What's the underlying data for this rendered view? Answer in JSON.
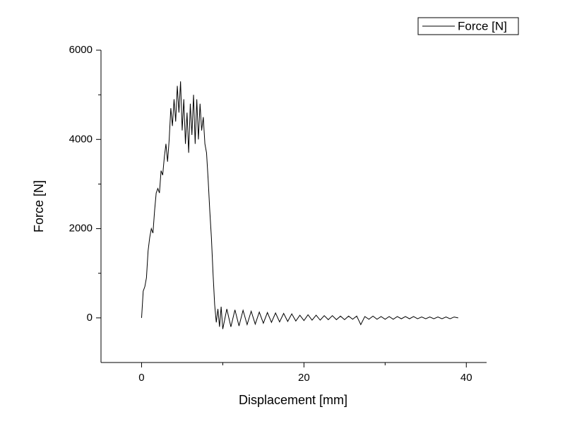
{
  "chart_data": {
    "type": "line",
    "xlabel": "Displacement [mm]",
    "ylabel": "Force [N]",
    "xlim": [
      -5,
      42.5
    ],
    "ylim": [
      -1000,
      6000
    ],
    "xticks": [
      0,
      20,
      40
    ],
    "yticks": [
      0,
      2000,
      4000,
      6000
    ],
    "legend": "top-right",
    "x": [
      0,
      0.2,
      0.4,
      0.6,
      0.8,
      1.0,
      1.2,
      1.4,
      1.6,
      1.8,
      2.0,
      2.2,
      2.4,
      2.6,
      2.8,
      3.0,
      3.2,
      3.4,
      3.6,
      3.8,
      4.0,
      4.2,
      4.4,
      4.6,
      4.8,
      5.0,
      5.2,
      5.4,
      5.6,
      5.8,
      6.0,
      6.2,
      6.4,
      6.6,
      6.8,
      7.0,
      7.2,
      7.4,
      7.6,
      7.8,
      8.0,
      8.2,
      8.4,
      8.6,
      8.8,
      9.0,
      9.2,
      9.4,
      9.6,
      9.8,
      10.0,
      10.5,
      11,
      11.5,
      12,
      12.5,
      13,
      13.5,
      14,
      14.5,
      15,
      15.5,
      16,
      16.5,
      17,
      17.5,
      18,
      18.5,
      19,
      19.5,
      20,
      20.5,
      21,
      21.5,
      22,
      22.5,
      23,
      23.5,
      24,
      24.5,
      25,
      25.5,
      26,
      26.5,
      27,
      27.5,
      28,
      28.5,
      29,
      29.5,
      30,
      30.5,
      31,
      31.5,
      32,
      32.5,
      33,
      33.5,
      34,
      34.5,
      35,
      35.5,
      36,
      36.5,
      37,
      37.5,
      38,
      38.5,
      39
    ],
    "series": [
      {
        "name": "Force [N]",
        "color": "#000000",
        "values": [
          0,
          600,
          700,
          900,
          1500,
          1800,
          2000,
          1900,
          2400,
          2800,
          2900,
          2800,
          3300,
          3200,
          3600,
          3900,
          3500,
          4000,
          4700,
          4300,
          4900,
          4400,
          5200,
          4600,
          5300,
          4200,
          4900,
          3900,
          4600,
          3700,
          4800,
          4100,
          5000,
          3900,
          4900,
          4000,
          4800,
          4200,
          4500,
          3900,
          3700,
          3100,
          2400,
          1800,
          1000,
          300,
          -100,
          200,
          -200,
          250,
          -250,
          200,
          -200,
          180,
          -180,
          170,
          -150,
          150,
          -140,
          130,
          -120,
          120,
          -100,
          110,
          -90,
          100,
          -80,
          90,
          -70,
          60,
          -60,
          70,
          -50,
          60,
          -50,
          50,
          -40,
          50,
          -40,
          40,
          -40,
          40,
          -30,
          40,
          -150,
          30,
          -30,
          40,
          -30,
          30,
          -30,
          30,
          -30,
          30,
          -20,
          30,
          -20,
          30,
          -20,
          20,
          -20,
          20,
          -20,
          20,
          -20,
          20,
          -20,
          20,
          0
        ]
      }
    ]
  }
}
